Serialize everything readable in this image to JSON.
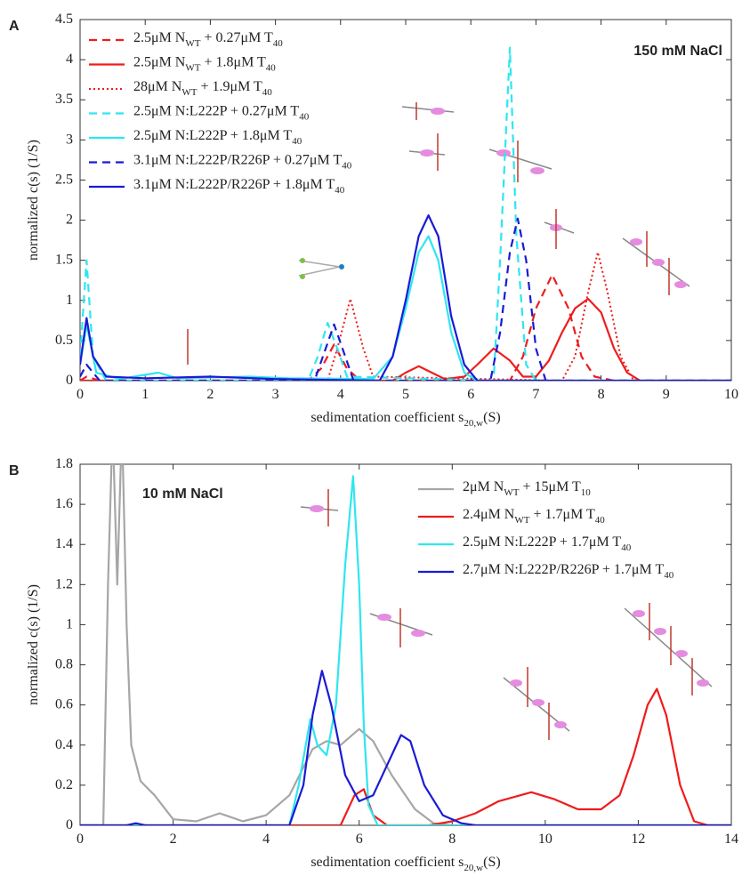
{
  "chart_data": [
    {
      "type": "line",
      "panel": "A",
      "title": "150 mM NaCl",
      "xlabel": "sedimentation coefficient s20,w(S)",
      "ylabel": "normalized c(s) (1/S)",
      "xlim": [
        0,
        10
      ],
      "ylim": [
        0,
        4.5
      ],
      "xticks": [
        0,
        1,
        2,
        3,
        4,
        5,
        6,
        7,
        8,
        9,
        10
      ],
      "yticks": [
        0,
        0.5,
        1,
        1.5,
        2,
        2.5,
        3,
        3.5,
        4,
        4.5
      ],
      "legend": "upper left",
      "series": [
        {
          "name": "2.5μM NWT + 0.27μM T40",
          "color": "#ee1c1c",
          "line_style": "dashed",
          "x": [
            0,
            0.1,
            0.3,
            3.5,
            3.7,
            3.9,
            4.1,
            4.3,
            6.6,
            6.8,
            7.0,
            7.25,
            7.5,
            7.7,
            7.9,
            8.2,
            10
          ],
          "values": [
            0,
            0.05,
            0,
            0,
            0.15,
            0.45,
            0.15,
            0,
            0,
            0.3,
            0.9,
            1.32,
            0.9,
            0.3,
            0.05,
            0,
            0
          ]
        },
        {
          "name": "2.5μM NWT + 1.8μM T40",
          "color": "#ee1c1c",
          "line_style": "solid",
          "x": [
            0,
            4.8,
            5.0,
            5.2,
            5.4,
            5.6,
            5.9,
            6.1,
            6.35,
            6.6,
            6.8,
            7.0,
            7.2,
            7.4,
            7.6,
            7.8,
            8.0,
            8.2,
            8.4,
            8.6,
            10
          ],
          "values": [
            0,
            0,
            0.1,
            0.18,
            0.1,
            0.02,
            0.05,
            0.2,
            0.4,
            0.25,
            0.05,
            0.05,
            0.25,
            0.6,
            0.9,
            1.02,
            0.85,
            0.4,
            0.1,
            0,
            0
          ]
        },
        {
          "name": "28μM NWT + 1.9μM T40",
          "color": "#ee1c1c",
          "line_style": "dotted",
          "x": [
            0,
            3.8,
            3.95,
            4.15,
            4.35,
            4.5,
            7.4,
            7.6,
            7.8,
            7.95,
            8.1,
            8.3,
            8.5,
            10
          ],
          "values": [
            0,
            0,
            0.4,
            1.02,
            0.4,
            0.05,
            0,
            0.3,
            1.1,
            1.6,
            1.1,
            0.3,
            0,
            0
          ]
        },
        {
          "name": "2.5μM N:L222P + 0.27μM T40",
          "color": "#2ee6f0",
          "line_style": "dashed",
          "x": [
            0,
            0.1,
            0.2,
            0.4,
            3.5,
            3.65,
            3.8,
            3.95,
            4.1,
            6.35,
            6.45,
            6.6,
            6.7,
            6.85,
            7,
            10
          ],
          "values": [
            0.3,
            1.5,
            0.3,
            0,
            0,
            0.3,
            0.72,
            0.4,
            0.05,
            0,
            1.5,
            4.15,
            1.8,
            0.2,
            0,
            0
          ]
        },
        {
          "name": "2.5μM N:L222P + 1.8μM T40",
          "color": "#2ee6f0",
          "line_style": "solid",
          "x": [
            0,
            0.1,
            0.25,
            0.6,
            1.2,
            1.5,
            2.6,
            3.2,
            4.5,
            4.8,
            5.0,
            5.2,
            5.35,
            5.5,
            5.7,
            5.9,
            6.1,
            10
          ],
          "values": [
            0.2,
            0.7,
            0.1,
            0.02,
            0.1,
            0.03,
            0.05,
            0.03,
            0.02,
            0.3,
            0.9,
            1.6,
            1.8,
            1.5,
            0.6,
            0.1,
            0,
            0
          ]
        },
        {
          "name": "3.1μM N:L222P/R226P + 0.27μM T40",
          "color": "#1a1ad6",
          "line_style": "dashed",
          "x": [
            0,
            0.1,
            0.3,
            3.6,
            3.75,
            3.9,
            4.05,
            4.2,
            6.3,
            6.45,
            6.6,
            6.72,
            6.85,
            7.0,
            7.15,
            10
          ],
          "values": [
            0.05,
            0.2,
            0,
            0,
            0.35,
            0.7,
            0.35,
            0,
            0,
            0.6,
            1.6,
            2.02,
            1.5,
            0.4,
            0,
            0
          ]
        },
        {
          "name": "3.1μM N:L222P/R226P + 1.8μM T40",
          "color": "#1a1ad6",
          "line_style": "solid",
          "x": [
            0,
            0.1,
            0.2,
            0.4,
            1,
            2,
            3,
            4.6,
            4.8,
            5.0,
            5.2,
            5.35,
            5.5,
            5.7,
            5.9,
            6.1,
            10
          ],
          "values": [
            0.2,
            0.78,
            0.3,
            0.05,
            0.03,
            0.05,
            0.02,
            0,
            0.3,
            1.0,
            1.8,
            2.06,
            1.8,
            0.8,
            0.2,
            0,
            0
          ]
        }
      ]
    },
    {
      "type": "line",
      "panel": "B",
      "title": "10 mM NaCl",
      "xlabel": "sedimentation coefficient s20,w(S)",
      "ylabel": "normalized c(s) (1/S)",
      "xlim": [
        0,
        14
      ],
      "ylim": [
        0,
        1.8
      ],
      "xticks": [
        0,
        2,
        4,
        6,
        8,
        10,
        12,
        14
      ],
      "yticks": [
        0,
        0.2,
        0.4,
        0.6,
        0.8,
        1,
        1.2,
        1.4,
        1.6,
        1.8
      ],
      "legend": "upper right",
      "series": [
        {
          "name": "2μM NWT + 15μM T10",
          "color": "#a6a6a6",
          "line_style": "solid",
          "x": [
            0,
            0.5,
            0.6,
            0.7,
            0.8,
            0.9,
            1.0,
            1.1,
            1.3,
            1.6,
            2,
            2.5,
            3.0,
            3.5,
            4.0,
            4.5,
            5.0,
            5.3,
            5.6,
            6.0,
            6.3,
            6.7,
            7.2,
            7.6,
            8,
            14
          ],
          "values": [
            0,
            0,
            1.2,
            2.0,
            1.2,
            2.0,
            1.0,
            0.4,
            0.22,
            0.15,
            0.03,
            0.02,
            0.06,
            0.02,
            0.05,
            0.15,
            0.38,
            0.42,
            0.4,
            0.48,
            0.42,
            0.25,
            0.08,
            0.01,
            0,
            0
          ]
        },
        {
          "name": "2.4μM NWT + 1.7μM T40",
          "color": "#ee1c1c",
          "line_style": "solid",
          "x": [
            0,
            5.6,
            5.9,
            6.1,
            6.3,
            6.6,
            7.5,
            8.0,
            8.5,
            9.0,
            9.7,
            10.2,
            10.7,
            11.2,
            11.6,
            11.9,
            12.2,
            12.4,
            12.6,
            12.9,
            13.2,
            13.5,
            14
          ],
          "values": [
            0,
            0,
            0.15,
            0.18,
            0.05,
            0,
            0,
            0.02,
            0.06,
            0.12,
            0.165,
            0.13,
            0.08,
            0.08,
            0.15,
            0.35,
            0.6,
            0.68,
            0.55,
            0.2,
            0.02,
            0,
            0
          ]
        },
        {
          "name": "2.5μM N:L222P + 1.7μM T40",
          "color": "#2ee6f0",
          "line_style": "solid",
          "x": [
            0,
            4.5,
            4.7,
            4.95,
            5.1,
            5.3,
            5.5,
            5.7,
            5.87,
            6.0,
            6.1,
            6.2,
            6.4,
            14
          ],
          "values": [
            0,
            0,
            0.2,
            0.53,
            0.4,
            0.35,
            0.6,
            1.3,
            1.74,
            1.2,
            0.5,
            0.1,
            0,
            0
          ]
        },
        {
          "name": "2.7μM N:L222P/R226P + 1.7μM T40",
          "color": "#1a1ad6",
          "line_style": "solid",
          "x": [
            0,
            1.0,
            1.2,
            1.4,
            4.5,
            4.8,
            5.0,
            5.2,
            5.4,
            5.7,
            6.0,
            6.3,
            6.6,
            6.9,
            7.1,
            7.4,
            7.8,
            8.2,
            8.5,
            14
          ],
          "values": [
            0,
            0,
            0.01,
            0,
            0,
            0.2,
            0.55,
            0.77,
            0.6,
            0.25,
            0.12,
            0.15,
            0.3,
            0.45,
            0.42,
            0.2,
            0.05,
            0.01,
            0,
            0
          ]
        }
      ]
    }
  ]
}
